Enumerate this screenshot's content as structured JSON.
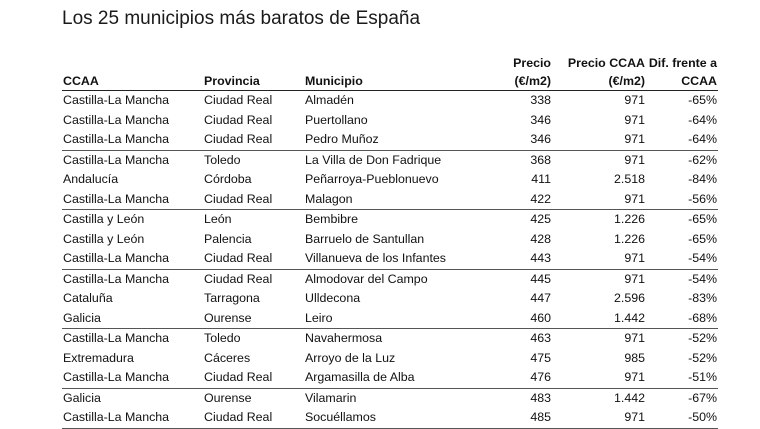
{
  "title": "Los 25 municipios más baratos de España",
  "headers": {
    "ccaa": "CCAA",
    "provincia": "Provincia",
    "municipio": "Municipio",
    "precio_line1": "Precio",
    "precio_line2": "(€/m2)",
    "precio_ccaa_line1": "Precio CCAA",
    "precio_ccaa_line2": "(€/m2)",
    "dif_line1": "Dif. frente a",
    "dif_line2": "CCAA"
  },
  "rows": [
    {
      "ccaa": "Castilla-La Mancha",
      "provincia": "Ciudad Real",
      "municipio": "Almadén",
      "precio": "338",
      "precio_ccaa": "971",
      "dif": "-65%"
    },
    {
      "ccaa": "Castilla-La Mancha",
      "provincia": "Ciudad Real",
      "municipio": "Puertollano",
      "precio": "346",
      "precio_ccaa": "971",
      "dif": "-64%"
    },
    {
      "ccaa": "Castilla-La Mancha",
      "provincia": "Ciudad Real",
      "municipio": "Pedro Muñoz",
      "precio": "346",
      "precio_ccaa": "971",
      "dif": "-64%"
    },
    {
      "ccaa": "Castilla-La Mancha",
      "provincia": "Toledo",
      "municipio": "La Villa de Don Fadrique",
      "precio": "368",
      "precio_ccaa": "971",
      "dif": "-62%"
    },
    {
      "ccaa": "Andalucía",
      "provincia": "Córdoba",
      "municipio": "Peñarroya-Pueblonuevo",
      "precio": "411",
      "precio_ccaa": "2.518",
      "dif": "-84%"
    },
    {
      "ccaa": "Castilla-La Mancha",
      "provincia": "Ciudad Real",
      "municipio": "Malagon",
      "precio": "422",
      "precio_ccaa": "971",
      "dif": "-56%"
    },
    {
      "ccaa": "Castilla y León",
      "provincia": "León",
      "municipio": "Bembibre",
      "precio": "425",
      "precio_ccaa": "1.226",
      "dif": "-65%"
    },
    {
      "ccaa": "Castilla y León",
      "provincia": "Palencia",
      "municipio": "Barruelo de Santullan",
      "precio": "428",
      "precio_ccaa": "1.226",
      "dif": "-65%"
    },
    {
      "ccaa": "Castilla-La Mancha",
      "provincia": "Ciudad Real",
      "municipio": "Villanueva de los Infantes",
      "precio": "443",
      "precio_ccaa": "971",
      "dif": "-54%"
    },
    {
      "ccaa": "Castilla-La Mancha",
      "provincia": "Ciudad Real",
      "municipio": "Almodovar del Campo",
      "precio": "445",
      "precio_ccaa": "971",
      "dif": "-54%"
    },
    {
      "ccaa": "Cataluña",
      "provincia": "Tarragona",
      "municipio": "Ulldecona",
      "precio": "447",
      "precio_ccaa": "2.596",
      "dif": "-83%"
    },
    {
      "ccaa": "Galicia",
      "provincia": "Ourense",
      "municipio": "Leiro",
      "precio": "460",
      "precio_ccaa": "1.442",
      "dif": "-68%"
    },
    {
      "ccaa": "Castilla-La Mancha",
      "provincia": "Toledo",
      "municipio": "Navahermosa",
      "precio": "463",
      "precio_ccaa": "971",
      "dif": "-52%"
    },
    {
      "ccaa": "Extremadura",
      "provincia": "Cáceres",
      "municipio": "Arroyo de la Luz",
      "precio": "475",
      "precio_ccaa": "985",
      "dif": "-52%"
    },
    {
      "ccaa": "Castilla-La Mancha",
      "provincia": "Ciudad Real",
      "municipio": "Argamasilla de Alba",
      "precio": "476",
      "precio_ccaa": "971",
      "dif": "-51%"
    },
    {
      "ccaa": "Galicia",
      "provincia": "Ourense",
      "municipio": "Vilamarin",
      "precio": "483",
      "precio_ccaa": "1.442",
      "dif": "-67%"
    },
    {
      "ccaa": "Castilla-La Mancha",
      "provincia": "Ciudad Real",
      "municipio": "Socuéllamos",
      "precio": "485",
      "precio_ccaa": "971",
      "dif": "-50%"
    }
  ]
}
